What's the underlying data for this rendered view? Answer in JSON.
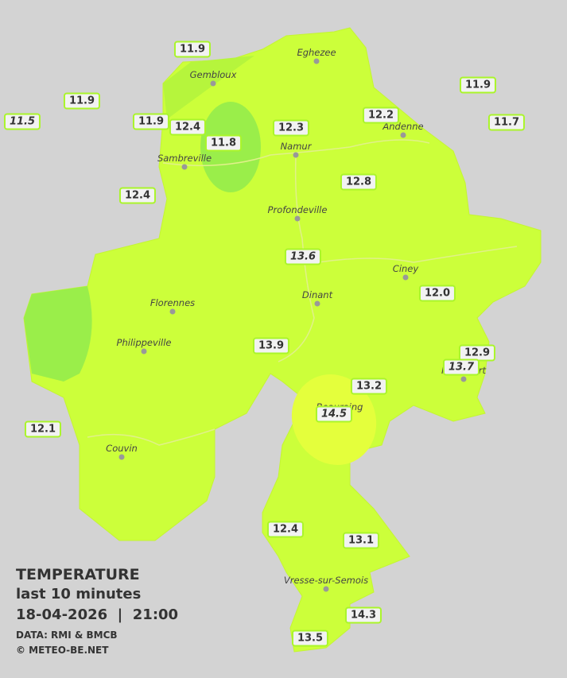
{
  "legend": {
    "title": "TEMPERATURE",
    "subtitle": "last 10 minutes",
    "datetime": "18-04-2026  |  21:00",
    "source": "DATA: RMI & BMCB",
    "copyright": "© METEO-BE.NET"
  },
  "cities": [
    "Eghezee",
    "Gembloux",
    "Andenne",
    "Namur",
    "Sambreville",
    "Profondeville",
    "Ciney",
    "Dinant",
    "Florennes",
    "Philippeville",
    "Rochefort",
    "Beauraing",
    "Couvin",
    "Vresse-sur-Semois"
  ],
  "stations": [
    {
      "label": "11.9",
      "italic": false
    },
    {
      "label": "11.9",
      "italic": false
    },
    {
      "label": "11.5",
      "italic": true
    },
    {
      "label": "11.9",
      "italic": false
    },
    {
      "label": "12.4",
      "italic": false
    },
    {
      "label": "11.8",
      "italic": false
    },
    {
      "label": "12.3",
      "italic": false
    },
    {
      "label": "12.2",
      "italic": false
    },
    {
      "label": "11.9",
      "italic": false
    },
    {
      "label": "11.7",
      "italic": false
    },
    {
      "label": "12.4",
      "italic": false
    },
    {
      "label": "12.8",
      "italic": false
    },
    {
      "label": "13.6",
      "italic": true
    },
    {
      "label": "12.0",
      "italic": false
    },
    {
      "label": "13.9",
      "italic": false
    },
    {
      "label": "12.9",
      "italic": false
    },
    {
      "label": "13.7",
      "italic": true
    },
    {
      "label": "13.2",
      "italic": false
    },
    {
      "label": "14.5",
      "italic": true
    },
    {
      "label": "12.1",
      "italic": false
    },
    {
      "label": "12.4",
      "italic": false
    },
    {
      "label": "13.1",
      "italic": false
    },
    {
      "label": "14.3",
      "italic": false
    },
    {
      "label": "13.5",
      "italic": false
    }
  ]
}
